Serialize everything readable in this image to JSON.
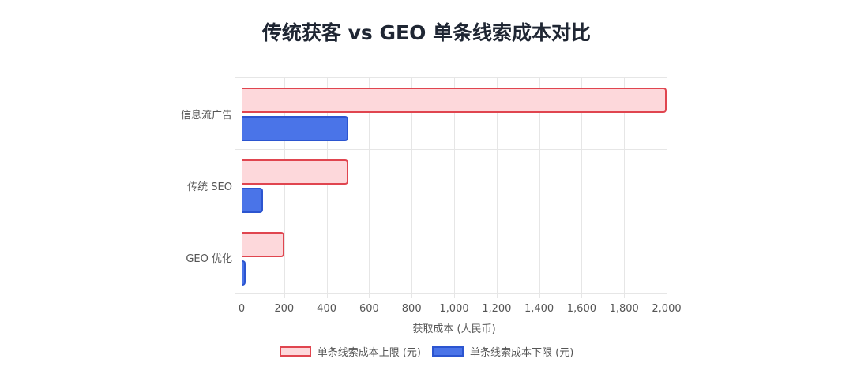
{
  "chart_data": {
    "type": "bar",
    "orientation": "horizontal",
    "title": "传统获客 vs GEO 单条线索成本对比",
    "categories": [
      "信息流广告",
      "传统 SEO",
      "GEO 优化"
    ],
    "series": [
      {
        "name": "单条线索成本上限 (元)",
        "values": [
          2000,
          500,
          200
        ],
        "color": "#fdd8db",
        "border": "#e0454f"
      },
      {
        "name": "单条线索成本下限 (元)",
        "values": [
          500,
          100,
          20
        ],
        "color": "#4a74e8",
        "border": "#2c55d0"
      }
    ],
    "xlabel": "获取成本 (人民币)",
    "ylabel": "",
    "xlim": [
      0,
      2000
    ],
    "xticks": [
      "0",
      "200",
      "400",
      "600",
      "800",
      "1,000",
      "1,200",
      "1,400",
      "1,600",
      "1,800",
      "2,000"
    ],
    "grid": true,
    "legend_position": "bottom"
  }
}
